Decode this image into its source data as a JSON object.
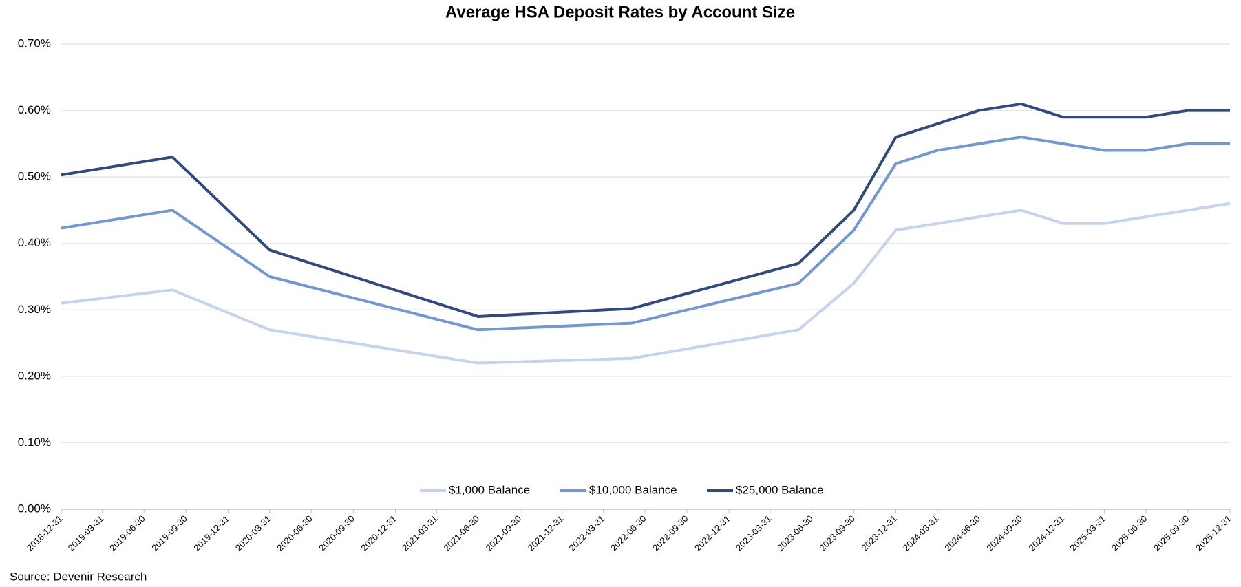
{
  "chart_data": {
    "type": "line",
    "title": "Average HSA Deposit Rates by Account Size",
    "source": "Source: Devenir Research",
    "x": [
      "2018-12-31",
      "2019-08-31",
      "2020-03-31",
      "2021-06-30",
      "2022-06-01",
      "2023-06-01",
      "2023-09-30",
      "2023-12-31",
      "2024-03-31",
      "2024-06-30",
      "2024-09-30",
      "2024-12-31",
      "2025-03-31",
      "2025-06-30",
      "2025-09-30",
      "2025-12-31"
    ],
    "series": [
      {
        "name": "$1,000 Balance",
        "color": "#c5d3ee",
        "values": [
          0.31,
          0.33,
          0.27,
          0.22,
          0.227,
          0.27,
          0.34,
          0.42,
          0.43,
          0.44,
          0.45,
          0.43,
          0.43,
          0.44,
          0.45,
          0.46
        ]
      },
      {
        "name": "$10,000 Balance",
        "color": "#7396d6",
        "values": [
          0.423,
          0.45,
          0.35,
          0.27,
          0.28,
          0.34,
          0.42,
          0.52,
          0.54,
          0.55,
          0.56,
          0.55,
          0.54,
          0.54,
          0.55,
          0.55
        ]
      },
      {
        "name": "$25,000 Balance",
        "color": "#2e4a7f",
        "values": [
          0.503,
          0.53,
          0.39,
          0.29,
          0.302,
          0.37,
          0.45,
          0.56,
          0.58,
          0.6,
          0.61,
          0.59,
          0.59,
          0.59,
          0.6,
          0.6
        ]
      }
    ],
    "xlim": [
      "2018-12-31",
      "2025-12-31"
    ],
    "xticks": [
      "2018-12-31",
      "2019-03-31",
      "2019-06-30",
      "2019-09-30",
      "2019-12-31",
      "2020-03-31",
      "2020-06-30",
      "2020-09-30",
      "2020-12-31",
      "2021-03-31",
      "2021-06-30",
      "2021-09-30",
      "2021-12-31",
      "2022-03-31",
      "2022-06-30",
      "2022-09-30",
      "2022-12-31",
      "2023-03-31",
      "2023-06-30",
      "2023-09-30",
      "2023-12-31",
      "2024-03-31",
      "2024-06-30",
      "2024-09-30",
      "2024-12-31",
      "2025-03-31",
      "2025-06-30",
      "2025-09-30",
      "2025-12-31"
    ],
    "ylim": [
      0,
      0.7
    ],
    "yticks": [
      {
        "value": 0,
        "label": "0.00%"
      },
      {
        "value": 0.1,
        "label": "0.10%"
      },
      {
        "value": 0.2,
        "label": "0.20%"
      },
      {
        "value": 0.3,
        "label": "0.30%"
      },
      {
        "value": 0.4,
        "label": "0.40%"
      },
      {
        "value": 0.5,
        "label": "0.50%"
      },
      {
        "value": 0.6,
        "label": "0.60%"
      },
      {
        "value": 0.7,
        "label": "0.70%"
      }
    ],
    "grid": true,
    "legend": "bottom"
  }
}
